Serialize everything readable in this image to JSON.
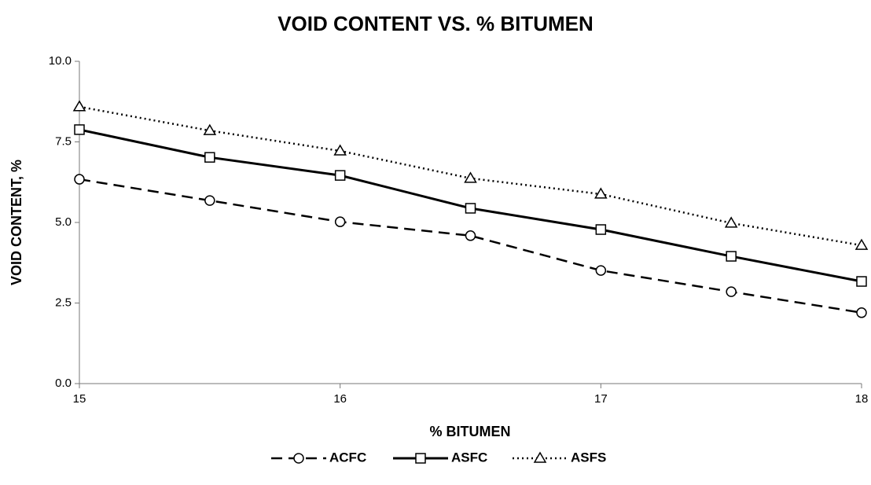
{
  "chart_data": {
    "type": "line",
    "title": "VOID CONTENT VS. % BITUMEN",
    "x_label": "% BITUMEN",
    "y_label": "VOID CONTENT, %",
    "x": [
      15,
      15.5,
      16,
      16.5,
      17,
      17.5,
      18
    ],
    "series": [
      {
        "name": "ACFC",
        "color": "#000000",
        "line_style": "dashed",
        "marker": "circle",
        "values": [
          6.34,
          5.68,
          5.02,
          4.59,
          3.51,
          2.85,
          2.2
        ]
      },
      {
        "name": "ASFC",
        "color": "#000000",
        "line_style": "solid",
        "marker": "square",
        "values": [
          7.88,
          7.02,
          6.46,
          5.44,
          4.78,
          3.95,
          3.17
        ]
      },
      {
        "name": "ASFS",
        "color": "#000000",
        "line_style": "dotted",
        "marker": "triangle",
        "values": [
          8.59,
          7.85,
          7.22,
          6.37,
          5.88,
          4.98,
          4.29
        ]
      }
    ],
    "xlim": [
      15,
      18
    ],
    "xticks": [
      15,
      16,
      17,
      18
    ],
    "ylim": [
      0,
      10
    ],
    "yticks": [
      {
        "value": 0,
        "label": "0.0"
      },
      {
        "value": 2.5,
        "label": "2.5"
      },
      {
        "value": 5,
        "label": "5.0"
      },
      {
        "value": 7.5,
        "label": "7.5"
      },
      {
        "value": 10,
        "label": "10.0"
      }
    ],
    "grid": false,
    "legend": "bottom"
  }
}
